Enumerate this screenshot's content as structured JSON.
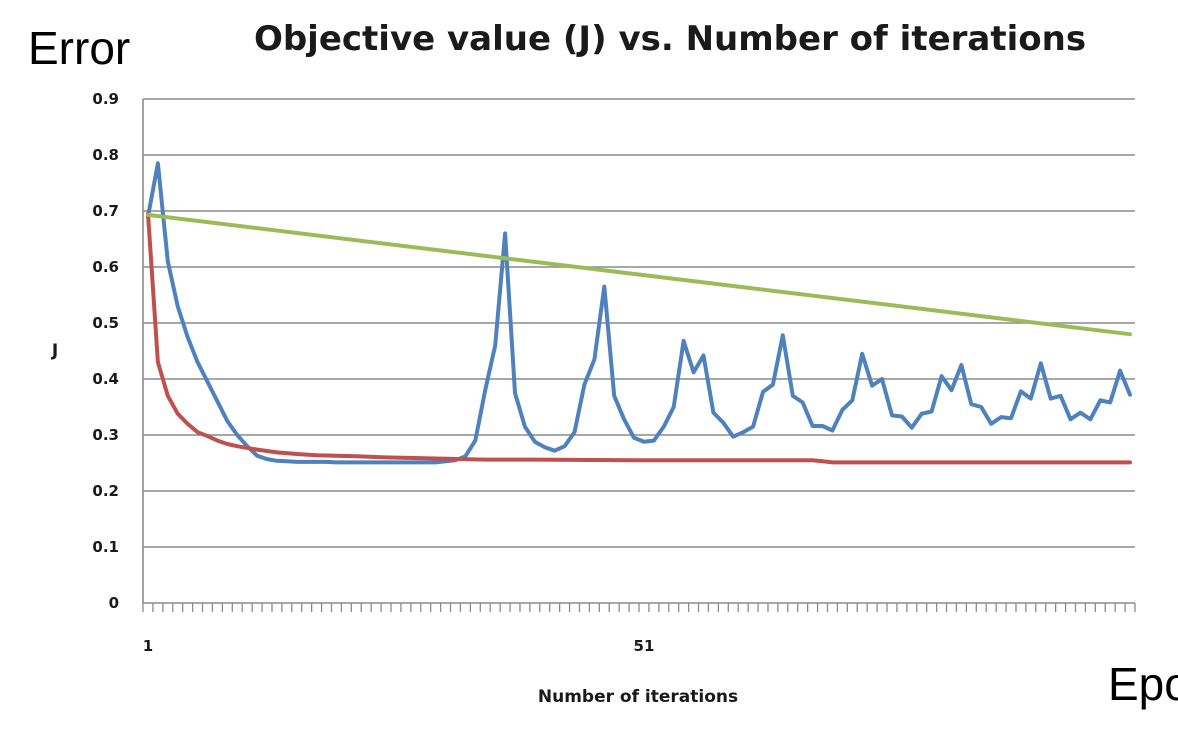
{
  "chart_data": {
    "type": "line",
    "title": "Objective value (J) vs. Number of iterations",
    "xlabel": "Number of iterations",
    "ylabel": "J",
    "corner_label_top": "Error",
    "corner_label_bottom": "Epo",
    "ylim": [
      0,
      0.9
    ],
    "yticks": [
      "0",
      "0.1",
      "0.2",
      "0.3",
      "0.4",
      "0.5",
      "0.6",
      "0.7",
      "0.8",
      "0.9"
    ],
    "xlim": [
      1,
      100
    ],
    "xticks": [
      {
        "value": 1,
        "label": "1"
      },
      {
        "value": 51,
        "label": "51"
      }
    ],
    "grid": true,
    "legend": "none",
    "series": [
      {
        "color": "#4f81bd",
        "x": [
          1,
          2,
          3,
          4,
          5,
          6,
          7,
          8,
          9,
          10,
          11,
          12,
          13,
          14,
          15,
          16,
          17,
          18,
          19,
          20,
          21,
          22,
          23,
          24,
          25,
          26,
          27,
          28,
          29,
          30,
          31,
          32,
          33,
          34,
          35,
          36,
          37,
          38,
          39,
          40,
          41,
          42,
          43,
          44,
          45,
          46,
          47,
          48,
          49,
          50,
          51,
          52,
          53,
          54,
          55,
          56,
          57,
          58,
          59,
          60,
          61,
          62,
          63,
          64,
          65,
          66,
          67,
          68,
          69,
          70,
          71,
          72,
          73,
          74,
          75,
          76,
          77,
          78,
          79,
          80,
          81,
          82,
          83,
          84,
          85,
          86,
          87,
          88,
          89,
          90,
          91,
          92,
          93,
          94,
          95,
          96,
          97,
          98,
          99,
          100
        ],
        "y": [
          0.69,
          0.785,
          0.61,
          0.53,
          0.475,
          0.43,
          0.395,
          0.36,
          0.325,
          0.3,
          0.28,
          0.263,
          0.257,
          0.254,
          0.253,
          0.252,
          0.252,
          0.252,
          0.252,
          0.251,
          0.251,
          0.251,
          0.251,
          0.251,
          0.251,
          0.251,
          0.251,
          0.251,
          0.251,
          0.251,
          0.253,
          0.255,
          0.262,
          0.29,
          0.38,
          0.46,
          0.66,
          0.375,
          0.315,
          0.288,
          0.278,
          0.272,
          0.28,
          0.305,
          0.39,
          0.435,
          0.565,
          0.37,
          0.328,
          0.295,
          0.288,
          0.29,
          0.315,
          0.35,
          0.468,
          0.412,
          0.442,
          0.34,
          0.322,
          0.297,
          0.305,
          0.315,
          0.377,
          0.39,
          0.478,
          0.37,
          0.358,
          0.316,
          0.316,
          0.308,
          0.345,
          0.362,
          0.445,
          0.388,
          0.4,
          0.335,
          0.333,
          0.313,
          0.338,
          0.342,
          0.405,
          0.38,
          0.425,
          0.355,
          0.35,
          0.32,
          0.332,
          0.33,
          0.378,
          0.365,
          0.428,
          0.365,
          0.37,
          0.328,
          0.34,
          0.328,
          0.362,
          0.358,
          0.415,
          0.372
        ]
      },
      {
        "color": "#c0504d",
        "x": [
          1,
          2,
          3,
          4,
          5,
          6,
          7,
          8,
          9,
          10,
          12,
          14,
          16,
          18,
          20,
          22,
          25,
          30,
          35,
          40,
          50,
          60,
          68,
          69,
          70,
          80,
          90,
          100
        ],
        "y": [
          0.695,
          0.43,
          0.37,
          0.338,
          0.32,
          0.305,
          0.298,
          0.29,
          0.284,
          0.28,
          0.274,
          0.269,
          0.266,
          0.264,
          0.263,
          0.262,
          0.26,
          0.258,
          0.256,
          0.256,
          0.255,
          0.255,
          0.255,
          0.253,
          0.251,
          0.251,
          0.251,
          0.251
        ]
      },
      {
        "color": "#9bbb59",
        "x": [
          1,
          100
        ],
        "y": [
          0.693,
          0.48
        ]
      }
    ]
  }
}
